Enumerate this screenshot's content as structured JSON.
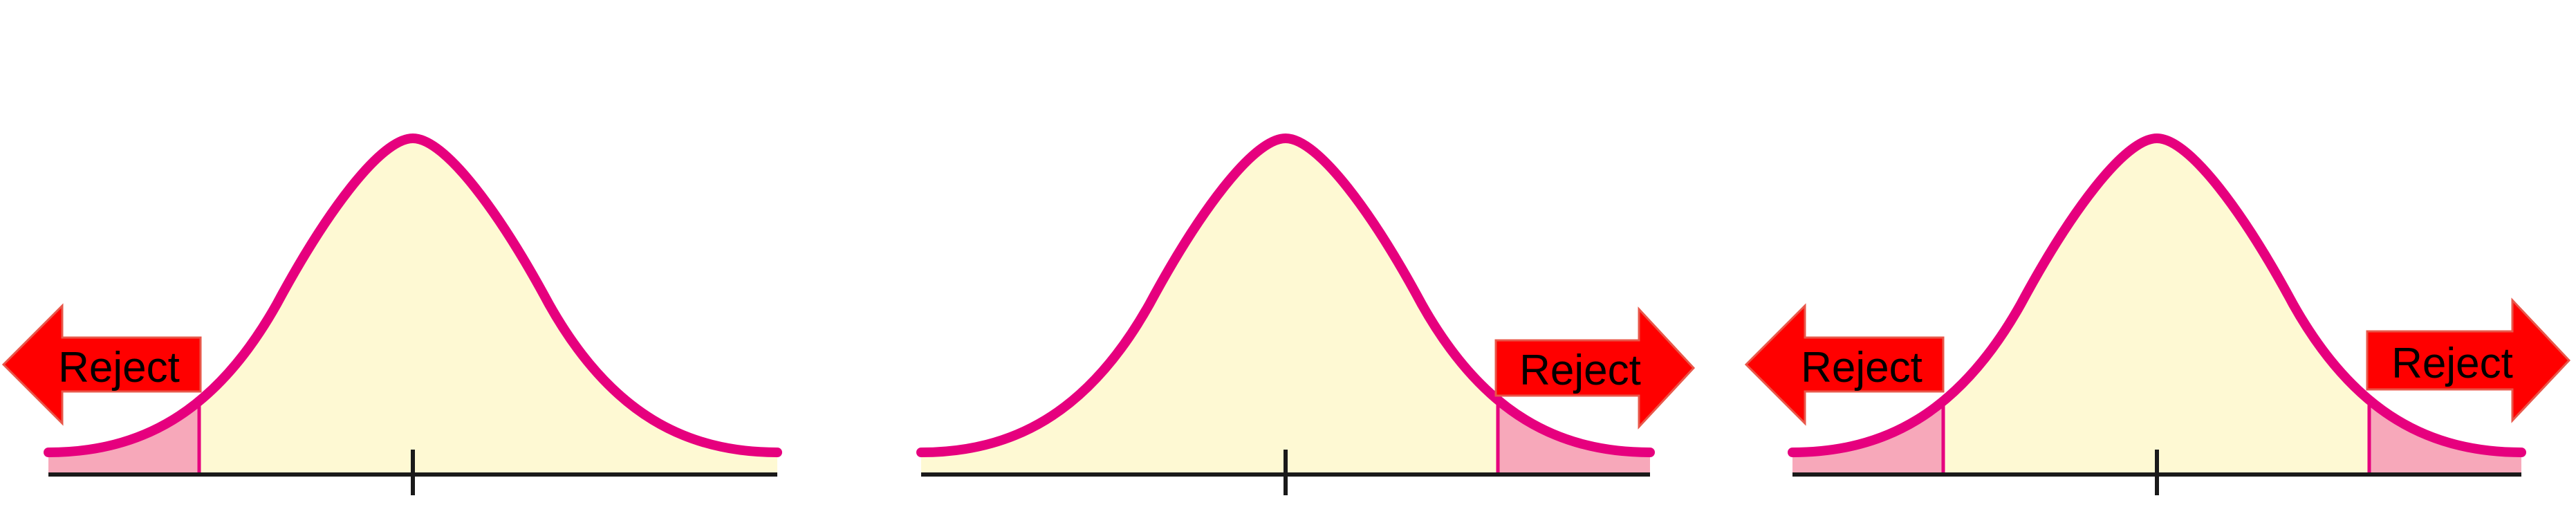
{
  "colors": {
    "curve": "#E6007E",
    "body_fill": "#FEF9D3",
    "tail_fill": "#F7A8BA",
    "arrow": "#FF0000",
    "axis": "#1A1A1A"
  },
  "panels": [
    {
      "test": "left-tailed",
      "arrows": [
        {
          "dir": "left",
          "label": "Reject"
        }
      ]
    },
    {
      "test": "right-tailed",
      "arrows": [
        {
          "dir": "right",
          "label": "Reject"
        }
      ]
    },
    {
      "test": "two-tailed",
      "arrows": [
        {
          "dir": "left",
          "label": "Reject"
        },
        {
          "dir": "right",
          "label": "Reject"
        }
      ]
    }
  ]
}
